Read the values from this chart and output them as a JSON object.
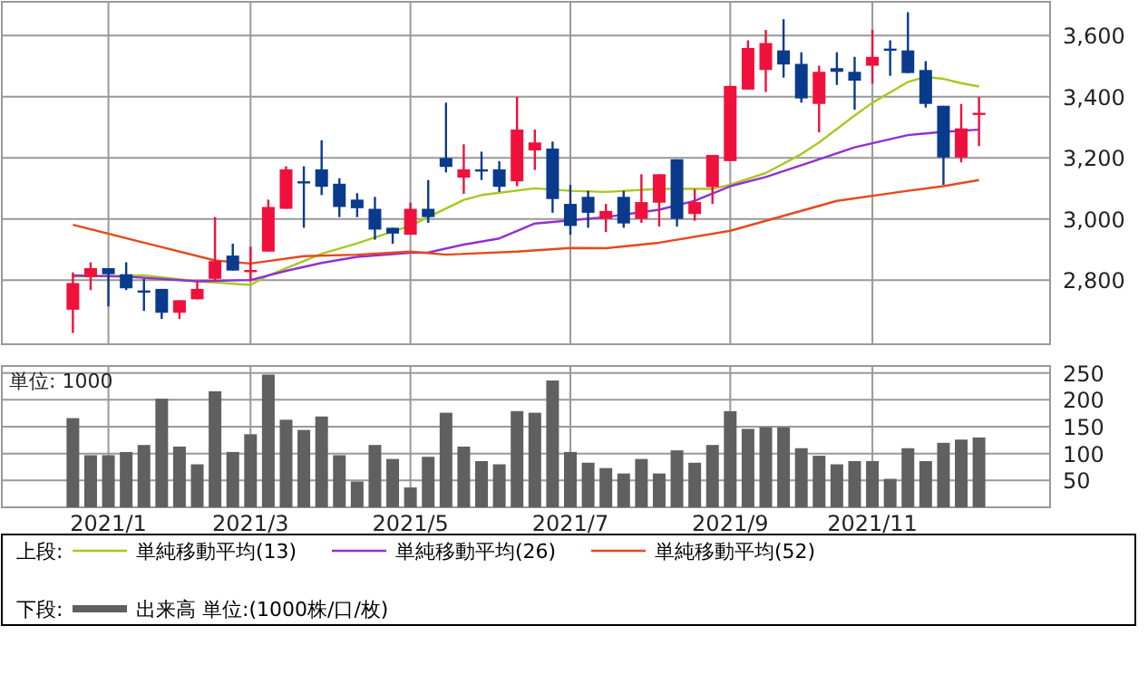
{
  "chart_data": [
    {
      "type": "candlestick",
      "legend_title": "上段:",
      "legend": "bottom",
      "grid": true,
      "tick_labels": "y",
      "x": [
        "2020-12-21",
        "2020-12-28",
        "2021-01-04",
        "2021-01-11",
        "2021-01-18",
        "2021-01-25",
        "2021-02-01",
        "2021-02-08",
        "2021-02-15",
        "2021-02-22",
        "2021-03-01",
        "2021-03-08",
        "2021-03-15",
        "2021-03-22",
        "2021-03-29",
        "2021-04-05",
        "2021-04-12",
        "2021-04-19",
        "2021-04-26",
        "2021-05-03",
        "2021-05-10",
        "2021-05-17",
        "2021-05-24",
        "2021-05-31",
        "2021-06-07",
        "2021-06-14",
        "2021-06-21",
        "2021-06-28",
        "2021-07-05",
        "2021-07-12",
        "2021-07-19",
        "2021-07-26",
        "2021-08-02",
        "2021-08-09",
        "2021-08-16",
        "2021-08-23",
        "2021-08-30",
        "2021-09-06",
        "2021-09-13",
        "2021-09-20",
        "2021-09-27",
        "2021-10-04",
        "2021-10-11",
        "2021-10-18",
        "2021-10-25",
        "2021-11-01",
        "2021-11-08",
        "2021-11-15",
        "2021-11-22",
        "2021-11-29",
        "2021-12-06",
        "2021-12-13"
      ],
      "ohlc": [
        [
          2703,
          2825,
          2627,
          2790
        ],
        [
          2810,
          2858,
          2767,
          2839
        ],
        [
          2839,
          2839,
          2714,
          2819
        ],
        [
          2819,
          2858,
          2767,
          2773
        ],
        [
          2766,
          2804,
          2699,
          2763
        ],
        [
          2771,
          2771,
          2673,
          2693
        ],
        [
          2693,
          2734,
          2673,
          2734
        ],
        [
          2737,
          2796,
          2737,
          2771
        ],
        [
          2804,
          3006,
          2796,
          2862
        ],
        [
          2880,
          2919,
          2831,
          2831
        ],
        [
          2829,
          2909,
          2796,
          2833
        ],
        [
          2893,
          3063,
          2893,
          3039
        ],
        [
          3033,
          3172,
          3033,
          3162
        ],
        [
          3123,
          3172,
          2971,
          3119
        ],
        [
          3162,
          3257,
          3078,
          3105
        ],
        [
          3115,
          3133,
          3006,
          3039
        ],
        [
          3063,
          3084,
          3006,
          3035
        ],
        [
          3033,
          3072,
          2932,
          2965
        ],
        [
          2971,
          2971,
          2919,
          2952
        ],
        [
          2948,
          3053,
          2948,
          3033
        ],
        [
          3033,
          3127,
          2987,
          3006
        ],
        [
          3199,
          3380,
          3152,
          3170
        ],
        [
          3135,
          3244,
          3082,
          3162
        ],
        [
          3162,
          3220,
          3127,
          3158
        ],
        [
          3162,
          3189,
          3088,
          3105
        ],
        [
          3123,
          3399,
          3107,
          3292
        ],
        [
          3224,
          3292,
          3160,
          3250
        ],
        [
          3230,
          3253,
          3020,
          3065
        ],
        [
          3049,
          3111,
          2948,
          2977
        ],
        [
          3072,
          3092,
          2971,
          3020
        ],
        [
          3000,
          3049,
          2957,
          3026
        ],
        [
          3072,
          3092,
          2971,
          2985
        ],
        [
          3000,
          3146,
          2987,
          3055
        ],
        [
          3053,
          3146,
          2975,
          3146
        ],
        [
          3195,
          3195,
          2975,
          3000
        ],
        [
          3016,
          3098,
          2994,
          3055
        ],
        [
          3104,
          3209,
          3049,
          3209
        ],
        [
          3189,
          3435,
          3189,
          3435
        ],
        [
          3423,
          3584,
          3423,
          3559
        ],
        [
          3487,
          3618,
          3415,
          3575
        ],
        [
          3551,
          3653,
          3462,
          3505
        ],
        [
          3507,
          3545,
          3380,
          3394
        ],
        [
          3376,
          3501,
          3283,
          3481
        ],
        [
          3493,
          3545,
          3438,
          3481
        ],
        [
          3481,
          3530,
          3357,
          3452
        ],
        [
          3501,
          3618,
          3442,
          3530
        ],
        [
          3557,
          3584,
          3468,
          3553
        ],
        [
          3551,
          3676,
          3477,
          3477
        ],
        [
          3487,
          3516,
          3364,
          3376
        ],
        [
          3370,
          3370,
          3111,
          3201
        ],
        [
          3201,
          3376,
          3185,
          3296
        ],
        [
          3345,
          3399,
          3238,
          3347
        ]
      ],
      "colors": [
        "#f0103c",
        "#f0103c",
        "#0a3a8c",
        "#0a3a8c",
        "#0a3a8c",
        "#0a3a8c",
        "#f0103c",
        "#f0103c",
        "#f0103c",
        "#0a3a8c",
        "#f0103c",
        "#f0103c",
        "#f0103c",
        "#0a3a8c",
        "#0a3a8c",
        "#0a3a8c",
        "#0a3a8c",
        "#0a3a8c",
        "#0a3a8c",
        "#f0103c",
        "#0a3a8c",
        "#0a3a8c",
        "#f0103c",
        "#0a3a8c",
        "#0a3a8c",
        "#f0103c",
        "#f0103c",
        "#0a3a8c",
        "#0a3a8c",
        "#0a3a8c",
        "#f0103c",
        "#0a3a8c",
        "#f0103c",
        "#f0103c",
        "#0a3a8c",
        "#f0103c",
        "#f0103c",
        "#f0103c",
        "#f0103c",
        "#f0103c",
        "#0a3a8c",
        "#0a3a8c",
        "#f0103c",
        "#0a3a8c",
        "#0a3a8c",
        "#f0103c",
        "#0a3a8c",
        "#0a3a8c",
        "#0a3a8c",
        "#0a3a8c",
        "#f0103c",
        "#f0103c"
      ],
      "series": [
        {
          "name": "単純移動平均(13)",
          "type": "line",
          "color": "#a8c820",
          "x": [
            "2020-12-21",
            "2021-01-18",
            "2021-02-08",
            "2021-03-01",
            "2021-03-08",
            "2021-03-29",
            "2021-04-12",
            "2021-05-03",
            "2021-05-24",
            "2021-05-31",
            "2021-06-21",
            "2021-07-05",
            "2021-07-19",
            "2021-08-09",
            "2021-08-30",
            "2021-09-06",
            "2021-09-20",
            "2021-10-04",
            "2021-10-11",
            "2021-10-25",
            "2021-11-01",
            "2021-11-15",
            "2021-11-22",
            "2021-11-29",
            "2021-12-06",
            "2021-12-13"
          ],
          "values": [
            2811,
            2815,
            2796,
            2784,
            2815,
            2886,
            2920,
            2978,
            3062,
            3078,
            3100,
            3092,
            3088,
            3098,
            3098,
            3112,
            3150,
            3212,
            3250,
            3338,
            3380,
            3448,
            3464,
            3458,
            3444,
            3433
          ]
        },
        {
          "name": "単純移動平均(26)",
          "type": "line",
          "color": "#9030d0",
          "x": [
            "2020-12-21",
            "2021-01-11",
            "2021-02-08",
            "2021-03-01",
            "2021-03-15",
            "2021-03-29",
            "2021-04-12",
            "2021-05-03",
            "2021-05-10",
            "2021-05-24",
            "2021-06-07",
            "2021-06-21",
            "2021-07-05",
            "2021-07-19",
            "2021-08-09",
            "2021-08-23",
            "2021-09-06",
            "2021-09-20",
            "2021-10-11",
            "2021-10-25",
            "2021-11-15",
            "2021-11-29",
            "2021-12-13"
          ],
          "values": [
            2815,
            2811,
            2796,
            2800,
            2830,
            2856,
            2876,
            2889,
            2890,
            2916,
            2936,
            2985,
            2995,
            3006,
            3030,
            3059,
            3107,
            3137,
            3195,
            3234,
            3274,
            3285,
            3292
          ]
        },
        {
          "name": "単純移動平均(52)",
          "type": "line",
          "color": "#e8481c",
          "x": [
            "2020-12-21",
            "2021-01-18",
            "2021-02-15",
            "2021-03-01",
            "2021-03-22",
            "2021-04-12",
            "2021-05-03",
            "2021-05-17",
            "2021-06-14",
            "2021-07-05",
            "2021-07-19",
            "2021-08-09",
            "2021-09-06",
            "2021-09-27",
            "2021-10-18",
            "2021-11-15",
            "2021-11-29",
            "2021-12-13"
          ],
          "values": [
            2981,
            2922,
            2864,
            2854,
            2878,
            2883,
            2893,
            2883,
            2893,
            2905,
            2904,
            2922,
            2961,
            3010,
            3059,
            3092,
            3107,
            3127
          ]
        }
      ],
      "xlim": [
        "2020-11-23",
        "2022-01-10"
      ],
      "xticks": [
        {
          "value": "2021-01-04",
          "label": null
        },
        {
          "value": "2021-03-01",
          "label": null
        },
        {
          "value": "2021-05-03",
          "label": null
        },
        {
          "value": "2021-07-05",
          "label": null
        },
        {
          "value": "2021-09-06",
          "label": null
        },
        {
          "value": "2021-11-01",
          "label": null
        }
      ],
      "ylim": [
        2590,
        3710
      ],
      "yticks": [
        {
          "value": 2800,
          "label": "2,800"
        },
        {
          "value": 3000,
          "label": "3,000"
        },
        {
          "value": 3200,
          "label": "3,200"
        },
        {
          "value": 3400,
          "label": "3,400"
        },
        {
          "value": 3600,
          "label": "3,600"
        }
      ]
    },
    {
      "type": "bar",
      "ylabel": "単位: 1000",
      "legend_title": "下段:",
      "legend": "bottom",
      "grid": true,
      "x": [
        "2020-12-21",
        "2020-12-28",
        "2021-01-04",
        "2021-01-11",
        "2021-01-18",
        "2021-01-25",
        "2021-02-01",
        "2021-02-08",
        "2021-02-15",
        "2021-02-22",
        "2021-03-01",
        "2021-03-08",
        "2021-03-15",
        "2021-03-22",
        "2021-03-29",
        "2021-04-05",
        "2021-04-12",
        "2021-04-19",
        "2021-04-26",
        "2021-05-03",
        "2021-05-10",
        "2021-05-17",
        "2021-05-24",
        "2021-05-31",
        "2021-06-07",
        "2021-06-14",
        "2021-06-21",
        "2021-06-28",
        "2021-07-05",
        "2021-07-12",
        "2021-07-19",
        "2021-07-26",
        "2021-08-02",
        "2021-08-09",
        "2021-08-16",
        "2021-08-23",
        "2021-08-30",
        "2021-09-06",
        "2021-09-13",
        "2021-09-20",
        "2021-09-27",
        "2021-10-04",
        "2021-10-11",
        "2021-10-18",
        "2021-10-25",
        "2021-11-01",
        "2021-11-08",
        "2021-11-15",
        "2021-11-22",
        "2021-11-29",
        "2021-12-06",
        "2021-12-13"
      ],
      "series": [
        {
          "name": "出来高 単位:(1000株/口/枚)",
          "color": "#606060",
          "values": [
            166,
            97,
            97,
            103,
            116,
            202,
            113,
            80,
            216,
            103,
            136,
            247,
            163,
            144,
            169,
            97,
            48,
            116,
            90,
            37,
            94,
            176,
            113,
            86,
            80,
            179,
            176,
            236,
            103,
            83,
            73,
            63,
            90,
            63,
            106,
            83,
            116,
            179,
            146,
            149,
            149,
            110,
            96,
            80,
            86,
            86,
            53,
            110,
            86,
            120,
            126,
            130
          ]
        }
      ],
      "xlim": [
        "2020-11-23",
        "2022-01-10"
      ],
      "xticks": [
        {
          "value": "2021-01-04",
          "label": "2021/1"
        },
        {
          "value": "2021-03-01",
          "label": "2021/3"
        },
        {
          "value": "2021-05-03",
          "label": "2021/5"
        },
        {
          "value": "2021-07-05",
          "label": "2021/7"
        },
        {
          "value": "2021-09-06",
          "label": "2021/9"
        },
        {
          "value": "2021-11-01",
          "label": "2021/11"
        }
      ],
      "ylim": [
        0,
        263
      ],
      "yticks": [
        50,
        100,
        150,
        200,
        250
      ]
    }
  ]
}
